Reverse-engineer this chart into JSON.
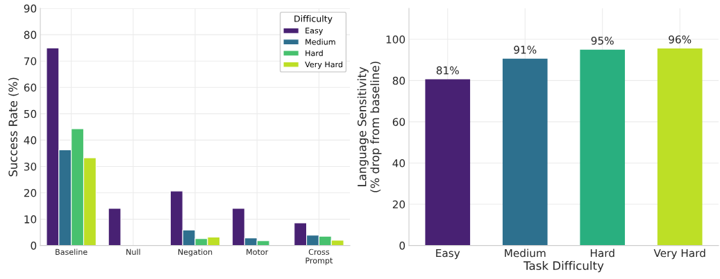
{
  "chart_data": [
    {
      "type": "bar",
      "ylabel": "Success Rate (%)",
      "categories": [
        "Baseline",
        "Null",
        "Negation",
        "Motor",
        "Cross\nPrompt"
      ],
      "ylim": [
        0,
        90
      ],
      "yticks": [
        0,
        10,
        20,
        30,
        40,
        50,
        60,
        70,
        80,
        90
      ],
      "grid": true,
      "legend": "top right",
      "legend_title": "Difficulty",
      "series": [
        {
          "name": "Easy",
          "color": "#482173",
          "values": [
            75.0,
            14.1,
            20.7,
            14.1,
            8.6
          ]
        },
        {
          "name": "Medium",
          "color": "#2e6f8e",
          "values": [
            36.3,
            null,
            5.9,
            2.9,
            3.9
          ]
        },
        {
          "name": "Hard",
          "color": "#47c16e",
          "values": [
            44.3,
            null,
            2.6,
            1.8,
            3.5
          ]
        },
        {
          "name": "Very Hard",
          "color": "#bddf26",
          "values": [
            33.3,
            null,
            3.2,
            null,
            2.0
          ]
        }
      ]
    },
    {
      "type": "bar",
      "xlabel": "Task Difficulty",
      "ylabel": "Language Sensitivity\n(% drop from baseline)",
      "categories": [
        "Easy",
        "Medium",
        "Hard",
        "Very Hard"
      ],
      "values": [
        80.6,
        90.6,
        95.0,
        95.6
      ],
      "colors": [
        "#482173",
        "#2d708e",
        "#29af7f",
        "#bddf26"
      ],
      "value_labels": [
        "81%",
        "91%",
        "95%",
        "96%"
      ],
      "ylim": [
        0,
        115
      ],
      "yticks": [
        0,
        20,
        40,
        60,
        80,
        100
      ],
      "grid": true
    }
  ]
}
